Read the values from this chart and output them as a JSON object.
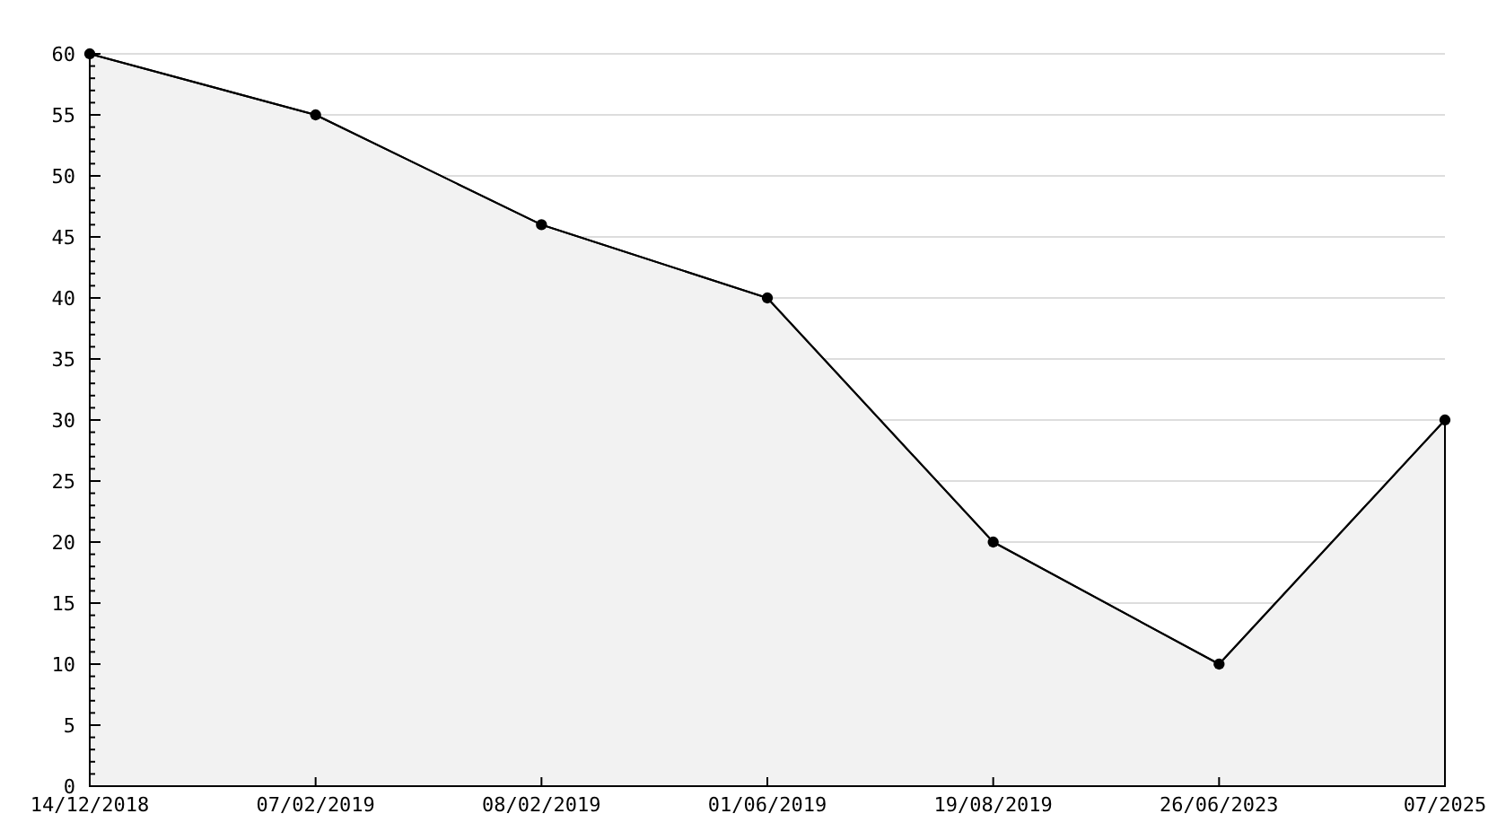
{
  "chart_data": {
    "type": "area",
    "categories": [
      "14/12/2018",
      "07/02/2019",
      "08/02/2019",
      "01/06/2019",
      "19/08/2019",
      "26/06/2023",
      "07/2025"
    ],
    "series": [
      {
        "color": "#000000",
        "values": [
          60,
          55,
          46,
          40,
          20,
          10,
          30
        ]
      }
    ],
    "ylim": [
      0,
      60
    ],
    "yticks": [
      0,
      {
        "value": 1,
        "label": null
      },
      {
        "value": 2,
        "label": null
      },
      {
        "value": 3,
        "label": null
      },
      {
        "value": 4,
        "label": null
      },
      5,
      {
        "value": 6,
        "label": null
      },
      {
        "value": 7,
        "label": null
      },
      {
        "value": 8,
        "label": null
      },
      {
        "value": 9,
        "label": null
      },
      10,
      {
        "value": 11,
        "label": null
      },
      {
        "value": 12,
        "label": null
      },
      {
        "value": 13,
        "label": null
      },
      {
        "value": 14,
        "label": null
      },
      15,
      {
        "value": 16,
        "label": null
      },
      {
        "value": 17,
        "label": null
      },
      {
        "value": 18,
        "label": null
      },
      {
        "value": 19,
        "label": null
      },
      20,
      {
        "value": 21,
        "label": null
      },
      {
        "value": 22,
        "label": null
      },
      {
        "value": 23,
        "label": null
      },
      {
        "value": 24,
        "label": null
      },
      25,
      {
        "value": 26,
        "label": null
      },
      {
        "value": 27,
        "label": null
      },
      {
        "value": 28,
        "label": null
      },
      {
        "value": 29,
        "label": null
      },
      30,
      {
        "value": 31,
        "label": null
      },
      {
        "value": 32,
        "label": null
      },
      {
        "value": 33,
        "label": null
      },
      {
        "value": 34,
        "label": null
      },
      35,
      {
        "value": 36,
        "label": null
      },
      {
        "value": 37,
        "label": null
      },
      {
        "value": 38,
        "label": null
      },
      {
        "value": 39,
        "label": null
      },
      40,
      {
        "value": 41,
        "label": null
      },
      {
        "value": 42,
        "label": null
      },
      {
        "value": 43,
        "label": null
      },
      {
        "value": 44,
        "label": null
      },
      45,
      {
        "value": 46,
        "label": null
      },
      {
        "value": 47,
        "label": null
      },
      {
        "value": 48,
        "label": null
      },
      {
        "value": 49,
        "label": null
      },
      50,
      {
        "value": 51,
        "label": null
      },
      {
        "value": 52,
        "label": null
      },
      {
        "value": 53,
        "label": null
      },
      {
        "value": 54,
        "label": null
      },
      55,
      {
        "value": 56,
        "label": null
      },
      {
        "value": 57,
        "label": null
      },
      {
        "value": 58,
        "label": null
      },
      {
        "value": 59,
        "label": null
      },
      60
    ],
    "grid": "y",
    "marker": "circle",
    "line_style": "solid"
  }
}
